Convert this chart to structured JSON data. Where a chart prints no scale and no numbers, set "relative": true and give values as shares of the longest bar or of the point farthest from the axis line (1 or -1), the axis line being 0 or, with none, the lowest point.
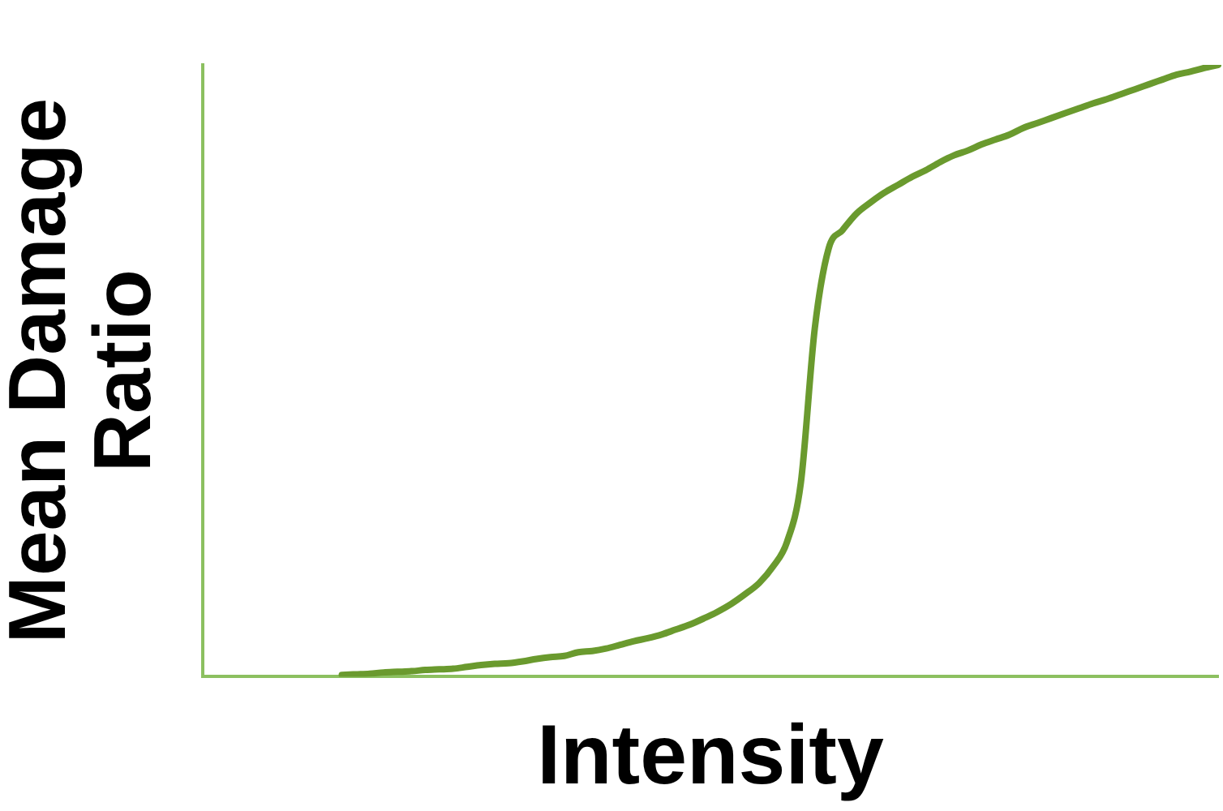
{
  "chart_data": {
    "type": "line",
    "xlabel": "Intensity",
    "ylabel": "Mean Damage Ratio",
    "relative": true,
    "color": "#6a9a2e",
    "grid": false,
    "legend": false,
    "marker": "none",
    "line_style": "solid",
    "categories": [
      null,
      null,
      null,
      null,
      null,
      null,
      null,
      null,
      null,
      null,
      null,
      null,
      null,
      null,
      null,
      null,
      null,
      null,
      null,
      null,
      null,
      null,
      null,
      null,
      null,
      null,
      null,
      null,
      null,
      null,
      null,
      null,
      null,
      null,
      null,
      null,
      null,
      null,
      null,
      null,
      null,
      null,
      null,
      null,
      null,
      null,
      null,
      null,
      null,
      null,
      null,
      null,
      null,
      null,
      null,
      null,
      null,
      null,
      null,
      null,
      null,
      null,
      null,
      null,
      null,
      null,
      null,
      null,
      null,
      null,
      null,
      null,
      null,
      null
    ],
    "values": [
      null,
      null,
      null,
      null,
      null,
      null,
      null,
      null,
      null,
      null,
      0.003,
      0.004,
      0.005,
      0.007,
      0.008,
      0.009,
      0.011,
      0.012,
      0.013,
      0.016,
      0.019,
      0.021,
      0.022,
      0.025,
      0.029,
      0.032,
      0.034,
      0.04,
      0.042,
      0.046,
      0.052,
      0.058,
      0.063,
      0.069,
      0.077,
      0.085,
      0.095,
      0.106,
      0.119,
      0.135,
      0.153,
      0.18,
      0.22,
      0.317,
      0.569,
      0.7,
      0.73,
      0.757,
      0.775,
      0.791,
      0.804,
      0.817,
      0.828,
      0.841,
      0.852,
      0.86,
      0.87,
      0.878,
      0.886,
      0.897,
      0.905,
      0.913,
      0.921,
      0.929,
      0.937,
      0.944,
      0.952,
      0.96,
      0.968,
      0.976,
      0.984,
      0.989,
      0.995,
      1
    ]
  }
}
